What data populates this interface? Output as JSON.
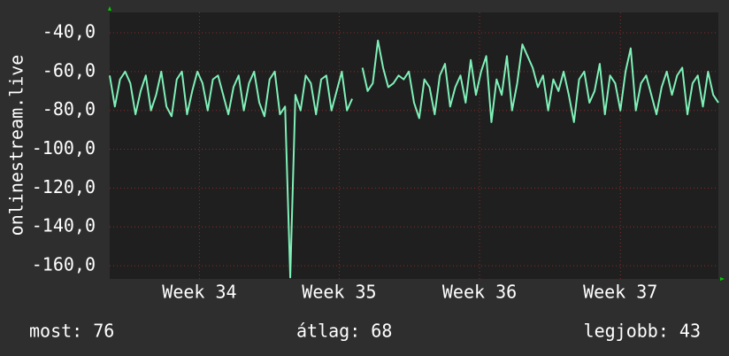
{
  "chart_data": {
    "type": "line",
    "ylabel": "onlinestream.live",
    "xlim": [
      0,
      118
    ],
    "xticks": [
      {
        "value": 17.4,
        "label": "Week 34"
      },
      {
        "value": 44.5,
        "label": "Week 35"
      },
      {
        "value": 71.7,
        "label": "Week 36"
      },
      {
        "value": 99.0,
        "label": "Week 37"
      }
    ],
    "ylim": [
      -166.8,
      -29.5
    ],
    "yticks": [
      {
        "value": -40,
        "label": "-40,0"
      },
      {
        "value": -60,
        "label": "-60,0"
      },
      {
        "value": -80,
        "label": "-80,0"
      },
      {
        "value": -100,
        "label": "-100,0"
      },
      {
        "value": -120,
        "label": "-120,0"
      },
      {
        "value": -140,
        "label": "-140,0"
      },
      {
        "value": -160,
        "label": "-160,0"
      }
    ],
    "grid": true,
    "series": [
      {
        "color": "#7ff0b8",
        "values": [
          -62,
          -78,
          -64,
          -60,
          -66,
          -82,
          -70,
          -62,
          -80,
          -72,
          -60,
          -78,
          -83,
          -64,
          -60,
          -82,
          -70,
          -60,
          -66,
          -80,
          -64,
          -62,
          -72,
          -82,
          -68,
          -62,
          -80,
          -66,
          -60,
          -76,
          -83,
          -64,
          -60,
          -82,
          -78,
          -166,
          -72,
          -80,
          -62,
          -66,
          -82,
          -64,
          -62,
          -80,
          -70,
          -60,
          -80,
          -74,
          null,
          -58,
          -70,
          -66,
          -44,
          -58,
          -68,
          -66,
          -62,
          -64,
          -60,
          -76,
          -84,
          -64,
          -68,
          -82,
          -62,
          -56,
          -78,
          -68,
          -62,
          -76,
          -54,
          -72,
          -60,
          -52,
          -86,
          -64,
          -72,
          -52,
          -80,
          -66,
          -46,
          -52,
          -58,
          -68,
          -62,
          -80,
          -64,
          -70,
          -60,
          -72,
          -86,
          -64,
          -60,
          -76,
          -70,
          -56,
          -82,
          -62,
          -66,
          -80,
          -60,
          -48,
          -80,
          -66,
          -62,
          -72,
          -82,
          -68,
          -60,
          -72,
          -62,
          -58,
          -82,
          -66,
          -62,
          -78,
          -60,
          -72,
          -76
        ]
      }
    ],
    "stats": [
      "most: 76",
      "átlag: 68",
      "legjobb: 43"
    ]
  }
}
